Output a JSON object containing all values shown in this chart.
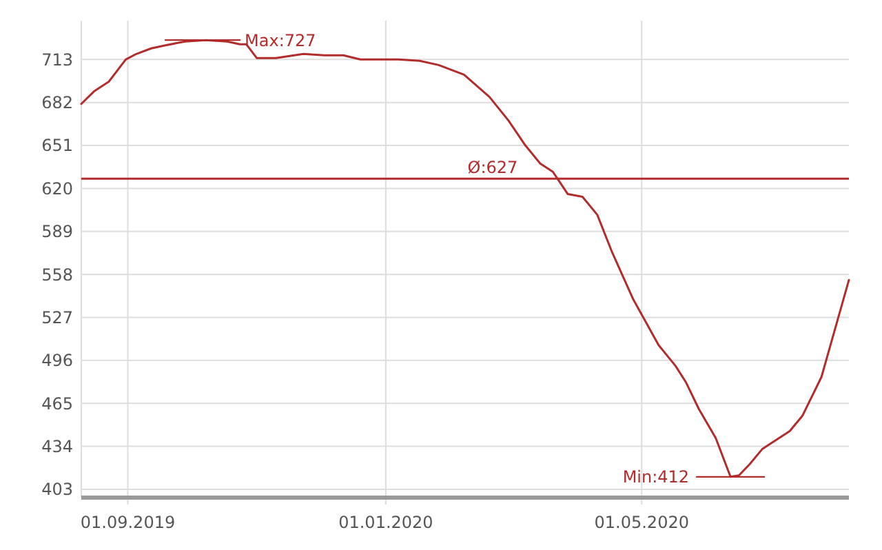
{
  "chart_data": {
    "type": "line",
    "x": [
      "2019-08-10",
      "2019-08-16",
      "2019-08-23",
      "2019-08-31",
      "2019-09-05",
      "2019-09-12",
      "2019-09-18",
      "2019-09-28",
      "2019-10-08",
      "2019-10-18",
      "2019-10-24",
      "2019-10-27",
      "2019-11-01",
      "2019-11-10",
      "2019-11-23",
      "2019-12-03",
      "2019-12-12",
      "2019-12-20",
      "2020-01-07",
      "2020-01-17",
      "2020-01-26",
      "2020-02-07",
      "2020-02-19",
      "2020-02-28",
      "2020-03-07",
      "2020-03-14",
      "2020-03-20",
      "2020-03-27",
      "2020-04-03",
      "2020-04-10",
      "2020-04-17",
      "2020-04-27",
      "2020-05-09",
      "2020-05-17",
      "2020-05-22",
      "2020-05-28",
      "2020-06-05",
      "2020-06-12",
      "2020-06-16",
      "2020-06-21",
      "2020-06-27",
      "2020-07-10",
      "2020-07-16",
      "2020-07-25",
      "2020-08-07"
    ],
    "series": [
      {
        "color": "#b22c2c",
        "values": [
          681,
          690,
          697,
          713,
          717,
          721,
          723,
          726,
          727,
          726,
          724,
          724,
          714,
          714,
          717,
          716,
          716,
          713,
          713,
          712,
          709,
          702,
          686,
          669,
          651,
          638,
          632,
          616,
          614,
          601,
          574,
          540,
          507,
          492,
          480,
          461,
          440,
          412,
          413,
          421,
          432,
          445,
          456,
          484,
          554
        ]
      }
    ],
    "xlim": [
      "2019-08-10",
      "2020-08-07"
    ],
    "xticks": [
      {
        "value": "2019-09-01",
        "label": "01.09.2019"
      },
      {
        "value": "2020-01-01",
        "label": "01.01.2020"
      },
      {
        "value": "2020-05-01",
        "label": "01.05.2020"
      }
    ],
    "ylim": [
      397,
      741
    ],
    "yticks": [
      403,
      434,
      465,
      496,
      527,
      558,
      589,
      620,
      651,
      682,
      713
    ],
    "grid": true,
    "line_style": "solid",
    "ref_lines": [
      {
        "axis": "y",
        "value": 627,
        "label": "Ø:627",
        "color": "#b22c2c"
      }
    ],
    "annotations": [
      {
        "text": "Max:727",
        "x": "2019-10-08",
        "y": 727
      },
      {
        "text": "Min:412",
        "x": "2020-06-12",
        "y": 412
      }
    ]
  }
}
